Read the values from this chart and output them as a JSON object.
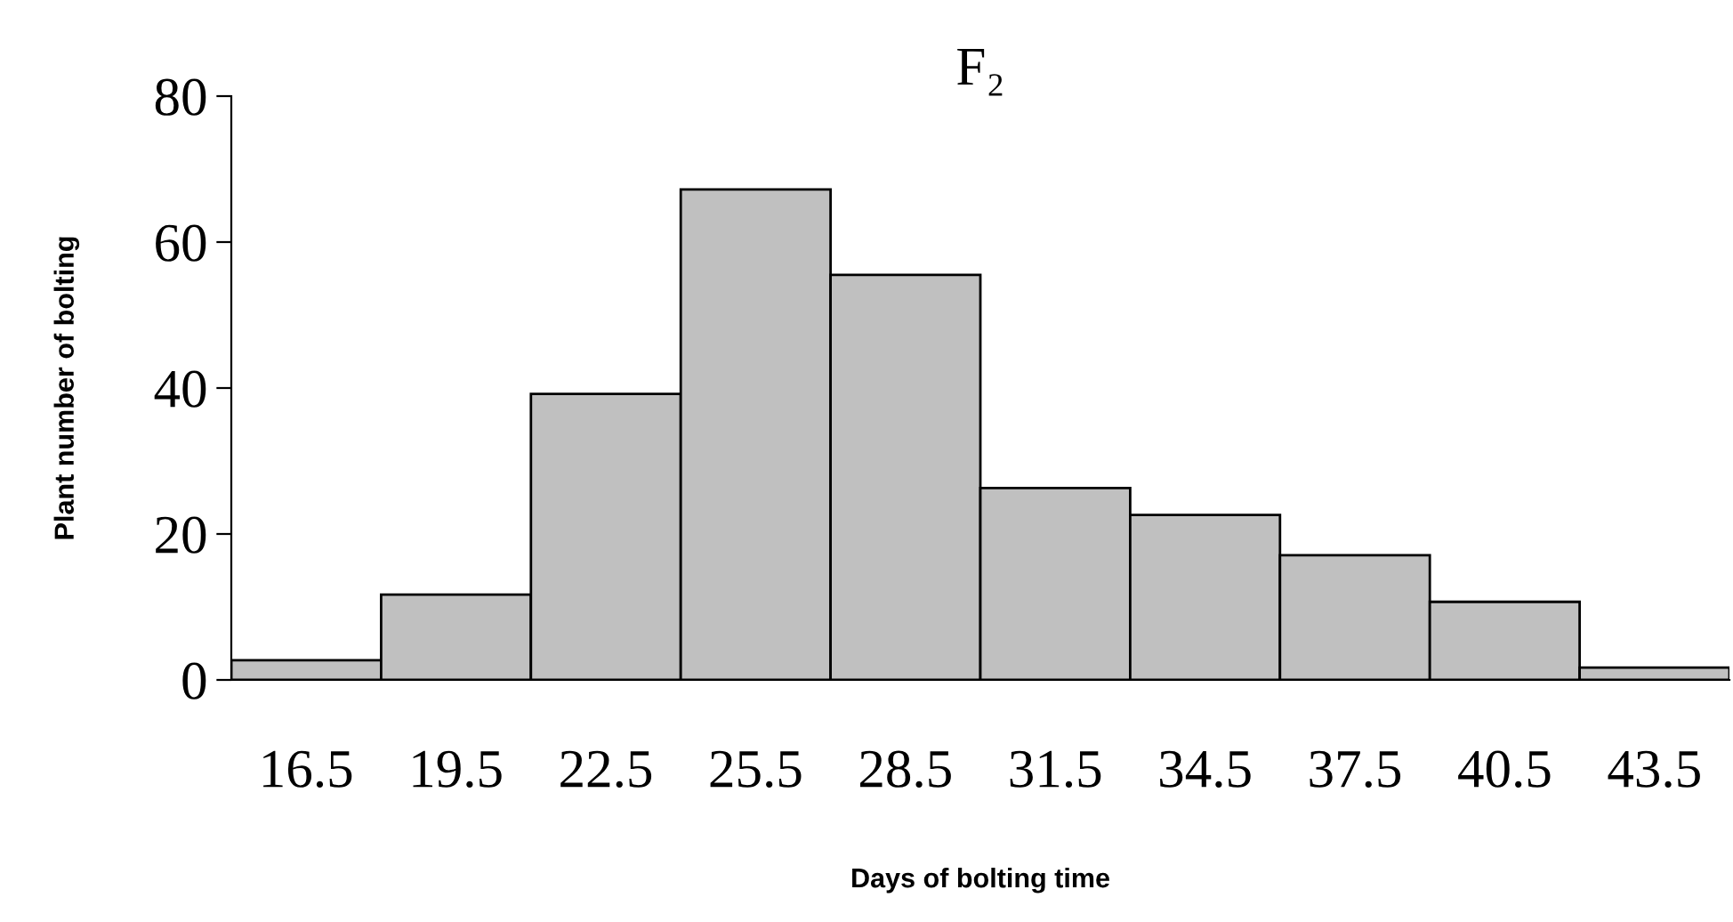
{
  "chart_data": {
    "type": "bar",
    "title": "F₂",
    "xlabel": "Days of bolting time",
    "ylabel": "Plant number of bolting",
    "categories": [
      "16.5",
      "19.5",
      "22.5",
      "25.5",
      "28.5",
      "31.5",
      "34.5",
      "37.5",
      "40.5",
      "43.5"
    ],
    "values": [
      2.7,
      11.7,
      39.2,
      67.2,
      55.5,
      26.3,
      22.6,
      17.1,
      10.7,
      1.7
    ],
    "color": "#c0c0c0",
    "ylim": [
      0,
      80
    ],
    "yticks": [
      0,
      20,
      40,
      60,
      80
    ],
    "grid": false,
    "legend": false
  }
}
